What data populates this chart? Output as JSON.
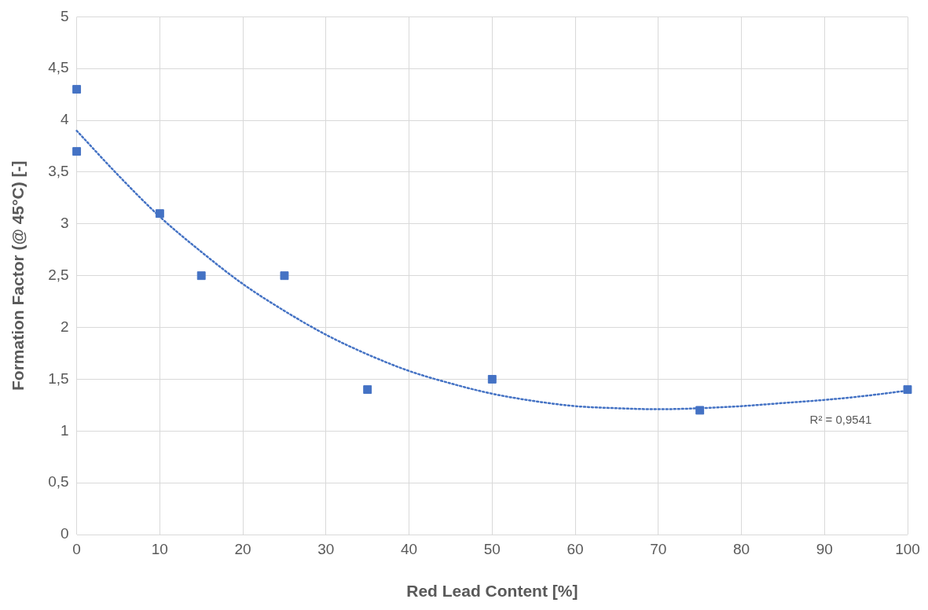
{
  "chart_data": {
    "type": "scatter",
    "xlabel": "Red Lead Content [%]",
    "ylabel": "Formation Factor (@ 45°C) [-]",
    "x": [
      0,
      0,
      10,
      15,
      25,
      35,
      50,
      75,
      100
    ],
    "series": [
      {
        "color": "#4472c4",
        "values": [
          4.3,
          3.7,
          3.1,
          2.5,
          2.5,
          1.4,
          1.5,
          1.2,
          1.4
        ],
        "marker": "square"
      },
      {
        "type": "line",
        "color": "#4472c4",
        "line_style": "dotted",
        "marker": "none",
        "x": [
          0,
          5,
          10,
          15,
          20,
          25,
          30,
          35,
          40,
          45,
          50,
          55,
          60,
          65,
          70,
          75,
          80,
          85,
          90,
          95,
          100
        ],
        "values": [
          3.9,
          3.47,
          3.07,
          2.73,
          2.42,
          2.16,
          1.93,
          1.74,
          1.58,
          1.46,
          1.36,
          1.29,
          1.24,
          1.22,
          1.21,
          1.22,
          1.24,
          1.27,
          1.3,
          1.34,
          1.39
        ]
      }
    ],
    "xlim": [
      0,
      100
    ],
    "xticks": [
      0,
      10,
      20,
      30,
      40,
      50,
      60,
      70,
      80,
      90,
      100
    ],
    "ylim": [
      0,
      5
    ],
    "yticks": [
      0,
      {
        "value": 0.5,
        "label": "0,5"
      },
      1,
      {
        "value": 1.5,
        "label": "1,5"
      },
      2,
      {
        "value": 2.5,
        "label": "2,5"
      },
      3,
      {
        "value": 3.5,
        "label": "3,5"
      },
      4,
      {
        "value": 4.5,
        "label": "4,5"
      },
      5
    ],
    "annotations": [
      "R² = 0,9541"
    ],
    "grid": true,
    "legend": false
  }
}
